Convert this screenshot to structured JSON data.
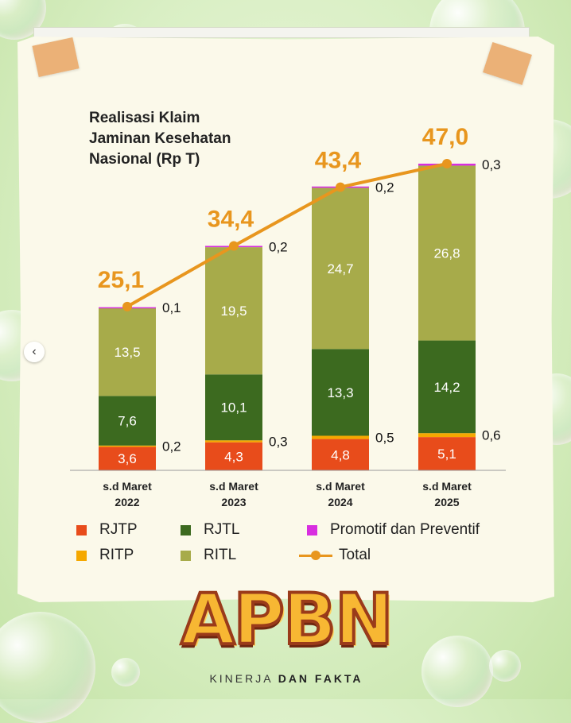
{
  "chart_data": {
    "type": "bar",
    "stacked": true,
    "title": "Realisasi Klaim Jaminan Kesehatan Nasional (Rp T)",
    "title_lines": [
      "Realisasi Klaim",
      "Jaminan Kesehatan",
      "Nasional (Rp T)"
    ],
    "categories": [
      {
        "line1": "s.d Maret",
        "line2": "2022"
      },
      {
        "line1": "s.d Maret",
        "line2": "2023"
      },
      {
        "line1": "s.d Maret",
        "line2": "2024"
      },
      {
        "line1": "s.d Maret",
        "line2": "2025"
      }
    ],
    "series": [
      {
        "name": "RJTP",
        "color": "#e84c1b",
        "values": [
          3.6,
          4.3,
          4.8,
          5.1
        ],
        "labels": [
          "3,6",
          "4,3",
          "4,8",
          "5,1"
        ]
      },
      {
        "name": "RITP",
        "color": "#f5a800",
        "values": [
          0.2,
          0.3,
          0.5,
          0.6
        ],
        "labels": [
          "0,2",
          "0,3",
          "0,5",
          "0,6"
        ]
      },
      {
        "name": "RJTL",
        "color": "#3c6a1f",
        "values": [
          7.6,
          10.1,
          13.3,
          14.2
        ],
        "labels": [
          "7,6",
          "10,1",
          "13,3",
          "14,2"
        ]
      },
      {
        "name": "RITL",
        "color": "#a7ab4a",
        "values": [
          13.5,
          19.5,
          24.7,
          26.8
        ],
        "labels": [
          "13,5",
          "19,5",
          "24,7",
          "26,8"
        ]
      },
      {
        "name": "Promotif dan Preventif",
        "color": "#d82ee0",
        "values": [
          0.1,
          0.2,
          0.2,
          0.3
        ],
        "labels": [
          "0,1",
          "0,2",
          "0,2",
          "0,3"
        ]
      }
    ],
    "total": {
      "name": "Total",
      "color": "#e8961e",
      "values": [
        25.1,
        34.4,
        43.4,
        47.0
      ],
      "labels": [
        "25,1",
        "34,4",
        "43,4",
        "47,0"
      ]
    },
    "ylim": [
      0,
      47.0
    ],
    "legend_position": "bottom"
  },
  "legend": {
    "rjtp": "RJTP",
    "ritp": "RITP",
    "rjtl": "RJTL",
    "ritl": "RITL",
    "promotif": "Promotif dan Preventif",
    "total": "Total"
  },
  "logo": {
    "text": "APBN",
    "tagline_a": "KINERJA",
    "tagline_b": "DAN FAKTA"
  },
  "colors": {
    "rjtp": "#e84c1b",
    "ritp": "#f5a800",
    "rjtl": "#3c6a1f",
    "ritl": "#a7ab4a",
    "promotif": "#d82ee0",
    "total": "#e8961e"
  },
  "nav": {
    "prev_icon": "chevron-left-icon"
  }
}
